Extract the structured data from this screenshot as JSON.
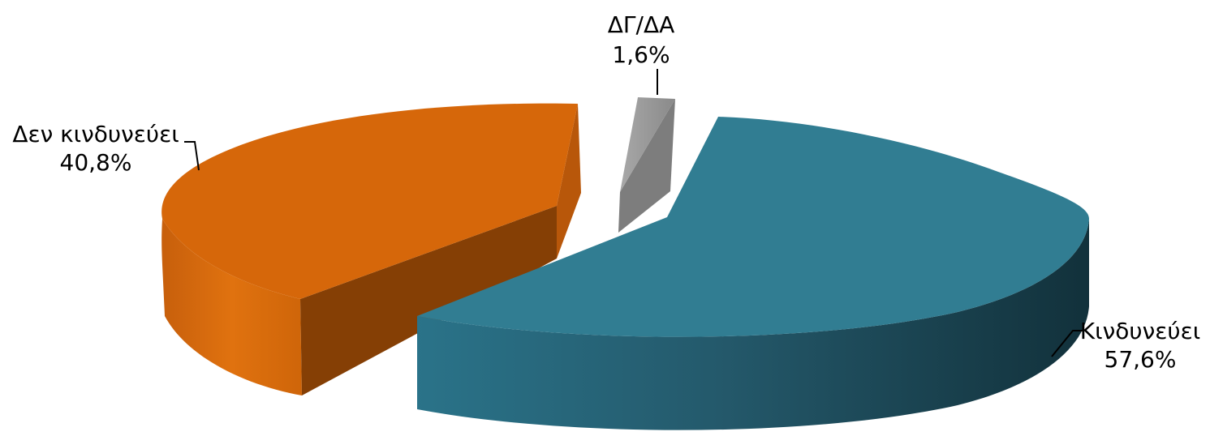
{
  "chart_data": {
    "type": "pie",
    "variant": "3d-exploded",
    "title": "",
    "slices": [
      {
        "label": "Κινδυνεύει",
        "value": 57.6,
        "value_label": "57,6%",
        "color": "#317d92"
      },
      {
        "label": "Δεν κινδυνεύει",
        "value": 40.8,
        "value_label": "40,8%",
        "color": "#d6670a"
      },
      {
        "label": "ΔΓ/ΔΑ",
        "value": 1.6,
        "value_label": "1,6%",
        "color": "#a0a0a0"
      }
    ],
    "legend": "none"
  }
}
